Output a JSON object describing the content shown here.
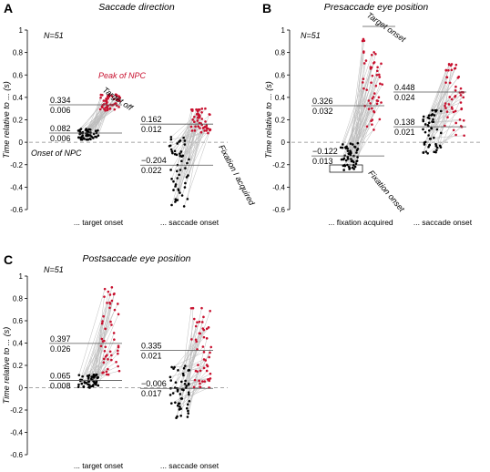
{
  "figure": {
    "colors": {
      "red": "#c8102e",
      "black": "#000000",
      "grey": "#bdbdbd",
      "dash": "#888888"
    }
  },
  "chart_data": [
    {
      "type": "scatter",
      "letter": "A",
      "title": "Saccade direction",
      "ylabel": "Time relative to ... (s)",
      "n_label": "N=51",
      "ylim": [
        -0.6,
        1.0
      ],
      "yticks": [
        "-0.6",
        "-0.4",
        "-0.2",
        "0",
        "0.2",
        "0.4",
        "0.6",
        "0.8",
        "1"
      ],
      "categories": [
        "... target onset",
        "... saccade onset"
      ],
      "left": {
        "black_range": [
          0.02,
          0.12
        ],
        "red_range": [
          0.28,
          0.43
        ],
        "stats_upper": [
          "0.334",
          "0.006"
        ],
        "stats_lower": [
          "0.082",
          "0.006"
        ],
        "upper_mean": 0.334,
        "lower_mean": 0.082
      },
      "right": {
        "black_range": [
          -0.58,
          0.05
        ],
        "red_range": [
          0.08,
          0.3
        ],
        "stats_upper": [
          "0.162",
          "0.012"
        ],
        "stats_lower": [
          "−0.204",
          "0.022"
        ],
        "upper_mean": 0.162,
        "lower_mean": -0.204
      },
      "annotations": {
        "peak": "Peak of NPC",
        "target_off": "Target off",
        "onset": "Onset of NPC",
        "fixation": "Fixation I acquired"
      }
    },
    {
      "type": "scatter",
      "letter": "B",
      "title": "Presaccade eye position",
      "ylabel": "Time relative to ... (s)",
      "n_label": "N=51",
      "ylim": [
        -0.6,
        1.0
      ],
      "yticks": [
        "-0.6",
        "-0.4",
        "-0.2",
        "0",
        "0.2",
        "0.4",
        "0.6",
        "0.8",
        "1"
      ],
      "categories": [
        "... fixation acquired",
        "... saccade onset"
      ],
      "left": {
        "black_range": [
          -0.25,
          0.0
        ],
        "red_range": [
          0.05,
          0.95
        ],
        "stats_upper": [
          "0.326",
          "0.032"
        ],
        "stats_lower": [
          "−0.122",
          "0.013"
        ],
        "upper_mean": 0.326,
        "lower_mean": -0.122
      },
      "right": {
        "black_range": [
          -0.1,
          0.3
        ],
        "red_range": [
          0.05,
          0.7
        ],
        "stats_upper": [
          "0.448",
          "0.024"
        ],
        "stats_lower": [
          "0.138",
          "0.021"
        ],
        "upper_mean": 0.448,
        "lower_mean": 0.138
      },
      "annotations": {
        "target_onset": "Target onset",
        "fixation_onset": "Fixation onset"
      }
    },
    {
      "type": "scatter",
      "letter": "C",
      "title": "Postsaccade eye position",
      "ylabel": "Time relative to ... (s)",
      "n_label": "N=51",
      "ylim": [
        -0.6,
        1.0
      ],
      "yticks": [
        "-0.6",
        "-0.4",
        "-0.2",
        "0",
        "0.2",
        "0.4",
        "0.6",
        "0.8",
        "1"
      ],
      "categories": [
        "... target onset",
        "... saccade onset"
      ],
      "left": {
        "black_range": [
          0.0,
          0.12
        ],
        "red_range": [
          0.1,
          0.9
        ],
        "stats_upper": [
          "0.397",
          "0.026"
        ],
        "stats_lower": [
          "0.065",
          "0.008"
        ],
        "upper_mean": 0.397,
        "lower_mean": 0.065
      },
      "right": {
        "black_range": [
          -0.28,
          0.2
        ],
        "red_range": [
          0.0,
          0.72
        ],
        "stats_upper": [
          "0.335",
          "0.021"
        ],
        "stats_lower": [
          "−0.006",
          "0.017"
        ],
        "upper_mean": 0.335,
        "lower_mean": -0.006
      },
      "annotations": {}
    }
  ]
}
